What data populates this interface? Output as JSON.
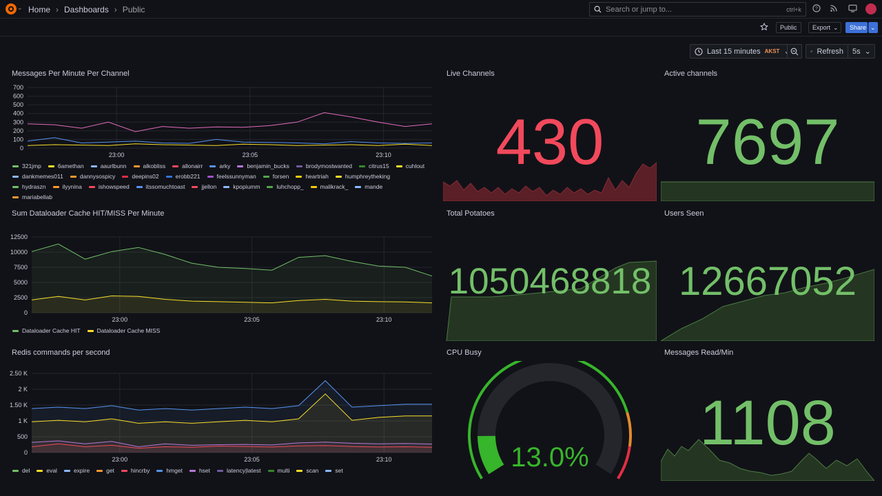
{
  "breadcrumb": {
    "home": "Home",
    "dashboards": "Dashboards",
    "current": "Public"
  },
  "search": {
    "placeholder": "Search or jump to...",
    "shortcut": "ctrl+k"
  },
  "toolbar": {
    "public_badge": "Public",
    "export_label": "Export",
    "share_label": "Share"
  },
  "timepicker": {
    "range": "Last 15 minutes",
    "timezone": "AKST",
    "refresh_label": "Refresh",
    "refresh_interval": "5s"
  },
  "panels": {
    "messages_per_minute": {
      "title": "Messages Per Minute Per Channel",
      "legend": [
        "321jmp",
        "6amethan",
        "aaurlbunn",
        "alkobliss",
        "allonairr",
        "arky",
        "benjamin_bucks",
        "brodymostwanted",
        "citrus15",
        "cuhlout",
        "dankmemes011",
        "dannysospicy",
        "deepins02",
        "erobb221",
        "feelssunnyman",
        "forsen",
        "heartriah",
        "humphreytheking",
        "hydraszn",
        "ilyynina",
        "ishowspeed",
        "itssomuchtoast",
        "jjellon",
        "kpopiumm",
        "luhchopp_",
        "malikrack_",
        "mande",
        "mariabellab"
      ],
      "legend_colors": [
        "#73bf69",
        "#fade2a",
        "#8ab8ff",
        "#ff9830",
        "#f2495c",
        "#5794f2",
        "#b877d9",
        "#705da0",
        "#37872d",
        "#fade2a",
        "#8ab8ff",
        "#ff9830",
        "#e02f44",
        "#3274d9",
        "#a352cc",
        "#56a64b",
        "#f2cc0c",
        "#fade2a",
        "#73bf69",
        "#ff9830",
        "#f2495c",
        "#5794f2",
        "#f2495c",
        "#8ab8ff",
        "#56a64b",
        "#f2cc0c",
        "#8ab8ff",
        "#ff9830"
      ]
    },
    "live_channels": {
      "title": "Live Channels",
      "value": "430"
    },
    "active_channels": {
      "title": "Active channels",
      "value": "7697"
    },
    "dataloader": {
      "title": "Sum Dataloader Cache HIT/MISS Per Minute",
      "legend": [
        "Dataloader Cache HIT",
        "Dataloader Cache MISS"
      ],
      "legend_colors": [
        "#73bf69",
        "#fade2a"
      ]
    },
    "total_potatoes": {
      "title": "Total Potatoes",
      "value": "1050468818"
    },
    "users_seen": {
      "title": "Users Seen",
      "value": "12667052"
    },
    "redis": {
      "title": "Redis commands per second",
      "legend": [
        "del",
        "eval",
        "expire",
        "get",
        "hincrby",
        "hmget",
        "hset",
        "latency|latest",
        "multi",
        "scan",
        "set"
      ],
      "legend_colors": [
        "#73bf69",
        "#fade2a",
        "#8ab8ff",
        "#ff9830",
        "#f2495c",
        "#5794f2",
        "#b877d9",
        "#705da0",
        "#37872d",
        "#fade2a",
        "#8ab8ff"
      ]
    },
    "cpu_busy": {
      "title": "CPU Busy",
      "value": "13.0%",
      "percent": 13.0
    },
    "messages_read": {
      "title": "Messages Read/Min",
      "value": "1108"
    }
  },
  "colors": {
    "green": "#73bf69",
    "red": "#f2495c",
    "yellow": "#fade2a",
    "blue": "#5794f2",
    "pink": "#e26bbd"
  },
  "chart_data": [
    {
      "type": "line",
      "title": "Messages Per Minute Per Channel",
      "x": [
        "22:56",
        "22:57",
        "22:58",
        "22:59",
        "23:00",
        "23:01",
        "23:02",
        "23:03",
        "23:04",
        "23:05",
        "23:06",
        "23:07",
        "23:08",
        "23:09",
        "23:10",
        "23:11"
      ],
      "xticks": [
        "23:00",
        "23:05",
        "23:10"
      ],
      "yticks": [
        "0",
        "100",
        "200",
        "300",
        "400",
        "500",
        "600",
        "700"
      ],
      "ylim": [
        0,
        700
      ],
      "series": [
        {
          "name": "arky",
          "values": [
            280,
            270,
            230,
            300,
            190,
            250,
            230,
            245,
            240,
            260,
            300,
            410,
            360,
            300,
            250,
            280
          ]
        },
        {
          "name": "ishowspeed",
          "values": [
            80,
            120,
            60,
            70,
            80,
            60,
            55,
            100,
            70,
            65,
            60,
            50,
            75,
            60,
            55,
            60
          ]
        },
        {
          "name": "forsen",
          "values": [
            30,
            40,
            35,
            30,
            50,
            40,
            35,
            30,
            45,
            40,
            30,
            35,
            40,
            30,
            45,
            30
          ]
        }
      ]
    },
    {
      "type": "area",
      "title": "Sum Dataloader Cache HIT/MISS Per Minute",
      "x": [
        "22:56",
        "22:57",
        "22:58",
        "22:59",
        "23:00",
        "23:01",
        "23:02",
        "23:03",
        "23:04",
        "23:05",
        "23:06",
        "23:07",
        "23:08",
        "23:09",
        "23:10",
        "23:11"
      ],
      "xticks": [
        "23:00",
        "23:05",
        "23:10"
      ],
      "yticks": [
        "0",
        "2500",
        "5000",
        "7500",
        "10000",
        "12500"
      ],
      "ylim": [
        0,
        13000
      ],
      "series": [
        {
          "name": "Dataloader Cache HIT",
          "values": [
            10500,
            11800,
            9200,
            10500,
            11200,
            10000,
            8500,
            7800,
            7600,
            7300,
            9500,
            9800,
            8800,
            8000,
            7800,
            6300
          ]
        },
        {
          "name": "Dataloader Cache MISS",
          "values": [
            2200,
            2800,
            2200,
            2900,
            2800,
            2300,
            2000,
            1900,
            1800,
            1700,
            2100,
            2300,
            2000,
            1900,
            1850,
            1700
          ]
        }
      ]
    },
    {
      "type": "area",
      "title": "Redis commands per second",
      "x": [
        "22:56",
        "22:57",
        "22:58",
        "22:59",
        "23:00",
        "23:01",
        "23:02",
        "23:03",
        "23:04",
        "23:05",
        "23:06",
        "23:07",
        "23:08",
        "23:09",
        "23:10",
        "23:11"
      ],
      "xticks": [
        "23:00",
        "23:05",
        "23:10"
      ],
      "yticks": [
        "0",
        "500",
        "1 K",
        "1.50 K",
        "2 K",
        "2.50 K"
      ],
      "ylim": [
        0,
        2700
      ],
      "series": [
        {
          "name": "set",
          "values": [
            1500,
            1550,
            1500,
            1600,
            1450,
            1500,
            1450,
            1500,
            1550,
            1500,
            1600,
            2450,
            1550,
            1600,
            1650,
            1650
          ]
        },
        {
          "name": "eval",
          "values": [
            1050,
            1100,
            1050,
            1150,
            1000,
            1050,
            1000,
            1050,
            1100,
            1050,
            1150,
            2000,
            1100,
            1200,
            1250,
            1250
          ]
        },
        {
          "name": "hset",
          "values": [
            350,
            400,
            300,
            380,
            200,
            300,
            250,
            270,
            280,
            260,
            330,
            360,
            320,
            300,
            310,
            290
          ]
        },
        {
          "name": "get",
          "values": [
            200,
            300,
            200,
            250,
            150,
            200,
            180,
            220,
            210,
            190,
            230,
            240,
            210,
            190,
            200,
            180
          ]
        }
      ]
    }
  ]
}
